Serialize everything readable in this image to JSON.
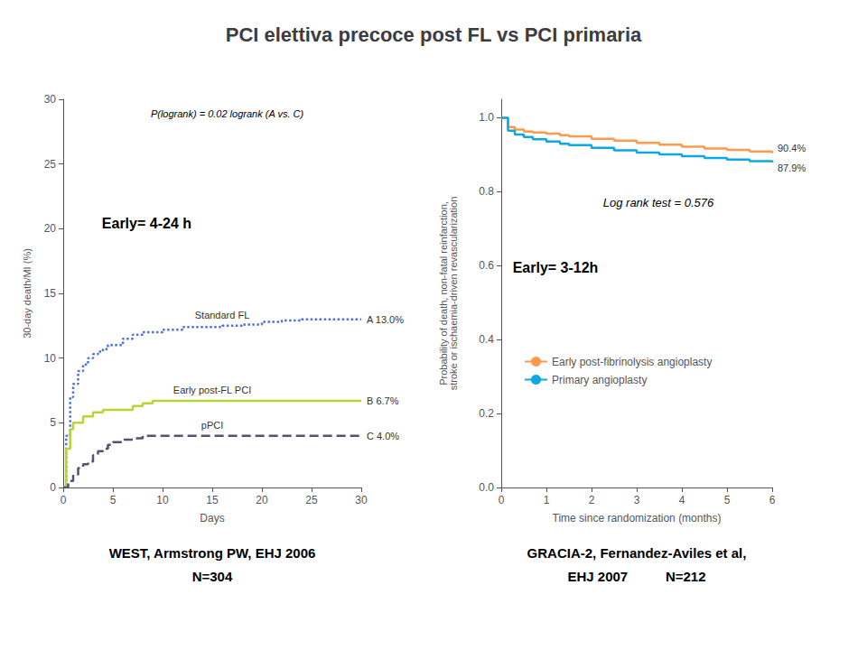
{
  "title": "PCI elettiva precoce post FL vs PCI primaria",
  "chart_data": [
    {
      "type": "step",
      "xlabel": "Days",
      "ylabel": "30-day death/MI (%)",
      "annotations": [
        "P(logrank) = 0.02 logrank (A vs. C)",
        "Early= 4-24 h"
      ],
      "subtitle": [
        "WEST, Armstrong PW, EHJ 2006",
        "N=304"
      ],
      "xlim": [
        0,
        30
      ],
      "ylim": [
        0,
        30
      ],
      "xticks": [
        0,
        5,
        10,
        15,
        20,
        25,
        30
      ],
      "yticks": [
        0,
        5,
        10,
        15,
        20,
        25,
        30
      ],
      "grid": false,
      "series": [
        {
          "name": "Standard FL",
          "end_label": "A 13.0%",
          "line_style": "dotted",
          "x": [
            0,
            0.3,
            0.7,
            1.0,
            1.5,
            2,
            2.5,
            3,
            3.5,
            4,
            4.5,
            5,
            6,
            7,
            8,
            9,
            10,
            12,
            14,
            16,
            18,
            20,
            22,
            24,
            26,
            28,
            30
          ],
          "values": [
            0,
            4,
            7,
            8,
            9,
            9.5,
            10,
            10.3,
            10.5,
            10.7,
            11,
            11,
            11.5,
            11.8,
            12,
            12,
            12.2,
            12.4,
            12.4,
            12.5,
            12.6,
            12.8,
            12.9,
            13,
            13,
            13,
            13
          ]
        },
        {
          "name": "Early post-FL PCI",
          "end_label": "B 6.7%",
          "line_style": "solid",
          "x": [
            0,
            0.3,
            0.7,
            1.0,
            2,
            3,
            4,
            5,
            6,
            7,
            8,
            9,
            10,
            15,
            20,
            25,
            30
          ],
          "values": [
            0,
            3,
            4.5,
            5,
            5.5,
            5.8,
            6,
            6,
            6,
            6.3,
            6.5,
            6.7,
            6.7,
            6.7,
            6.7,
            6.7,
            6.7
          ]
        },
        {
          "name": "pPCI",
          "end_label": "C 4.0%",
          "line_style": "dashed",
          "x": [
            0,
            0.5,
            1,
            1.5,
            2,
            2.5,
            3,
            3.5,
            4,
            4.5,
            5,
            6,
            7,
            8,
            9,
            10,
            15,
            20,
            25,
            30
          ],
          "values": [
            0,
            0.5,
            1,
            1.5,
            1.8,
            2,
            2.5,
            2.8,
            3,
            3.3,
            3.5,
            3.7,
            3.8,
            4,
            4,
            4,
            4,
            4,
            4,
            4
          ]
        }
      ]
    },
    {
      "type": "step",
      "xlabel": "Time since randomization (months)",
      "ylabel": "Probability of death, non-fatal reinfarction,\nstroke or ischaemia-driven revascularization",
      "annotations": [
        "Log rank test = 0.576",
        "Early= 3-12h"
      ],
      "subtitle": [
        "GRACIA-2, Fernandez-Aviles et al,",
        "EHJ 2007          N=212"
      ],
      "xlim": [
        0,
        6
      ],
      "ylim": [
        0.0,
        1.05
      ],
      "xticks": [
        0,
        1,
        2,
        3,
        4,
        5,
        6
      ],
      "yticks": [
        {
          "value": 0.0,
          "label": "0.0"
        },
        0.2,
        0.4,
        0.6,
        0.8,
        {
          "value": 1.0,
          "label": "1.0"
        }
      ],
      "grid": false,
      "legend": "center",
      "series": [
        {
          "name": "Early post-fibrinolysis angioplasty",
          "end_label": "90.4%",
          "line_style": "solid",
          "x": [
            0,
            0.15,
            0.3,
            0.5,
            0.7,
            1.0,
            1.3,
            1.5,
            2.0,
            2.5,
            3.0,
            3.5,
            4.0,
            4.5,
            5.0,
            5.5,
            6.0
          ],
          "values": [
            1.0,
            0.975,
            0.968,
            0.963,
            0.96,
            0.957,
            0.953,
            0.95,
            0.943,
            0.938,
            0.932,
            0.927,
            0.922,
            0.917,
            0.913,
            0.909,
            0.904
          ]
        },
        {
          "name": "Primary angioplasty",
          "end_label": "87.9%",
          "line_style": "solid",
          "x": [
            0,
            0.15,
            0.3,
            0.5,
            0.7,
            1.0,
            1.3,
            1.5,
            2.0,
            2.5,
            3.0,
            3.5,
            4.0,
            4.5,
            5.0,
            5.5,
            6.0
          ],
          "values": [
            1.0,
            0.965,
            0.955,
            0.948,
            0.942,
            0.936,
            0.93,
            0.926,
            0.919,
            0.912,
            0.906,
            0.901,
            0.896,
            0.891,
            0.887,
            0.883,
            0.879
          ]
        }
      ]
    }
  ]
}
